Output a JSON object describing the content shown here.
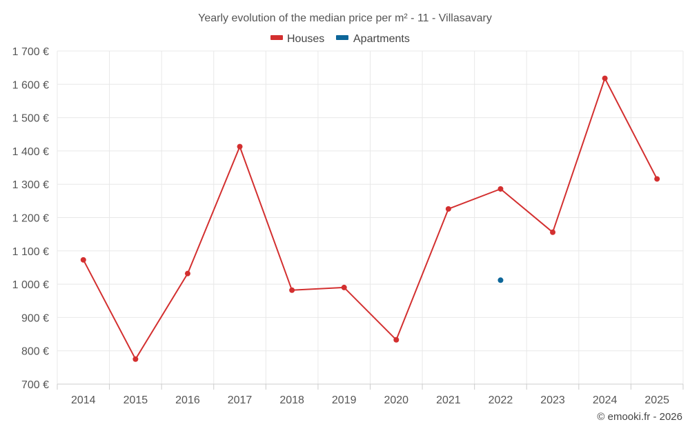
{
  "chart_data": {
    "type": "line",
    "title": "Yearly evolution of the median price per m² - 11 - Villasavary",
    "categories": [
      "2014",
      "2015",
      "2016",
      "2017",
      "2018",
      "2019",
      "2020",
      "2021",
      "2022",
      "2023",
      "2024",
      "2025"
    ],
    "y_ticks": [
      "700 €",
      "800 €",
      "900 €",
      "1 000 €",
      "1 100 €",
      "1 200 €",
      "1 300 €",
      "1 400 €",
      "1 500 €",
      "1 600 €",
      "1 700 €"
    ],
    "ylim": [
      700,
      1700
    ],
    "grid": true,
    "legend_position": "top-center",
    "series": [
      {
        "name": "Houses",
        "color": "#d32f2f",
        "values": [
          1073,
          775,
          1032,
          1413,
          982,
          990,
          833,
          1226,
          1286,
          1156,
          1618,
          1316
        ]
      },
      {
        "name": "Apartments",
        "color": "#0d6699",
        "values": [
          null,
          null,
          null,
          null,
          null,
          null,
          null,
          null,
          1012,
          null,
          null,
          null
        ]
      }
    ]
  },
  "credit": "© emooki.fr - 2026"
}
